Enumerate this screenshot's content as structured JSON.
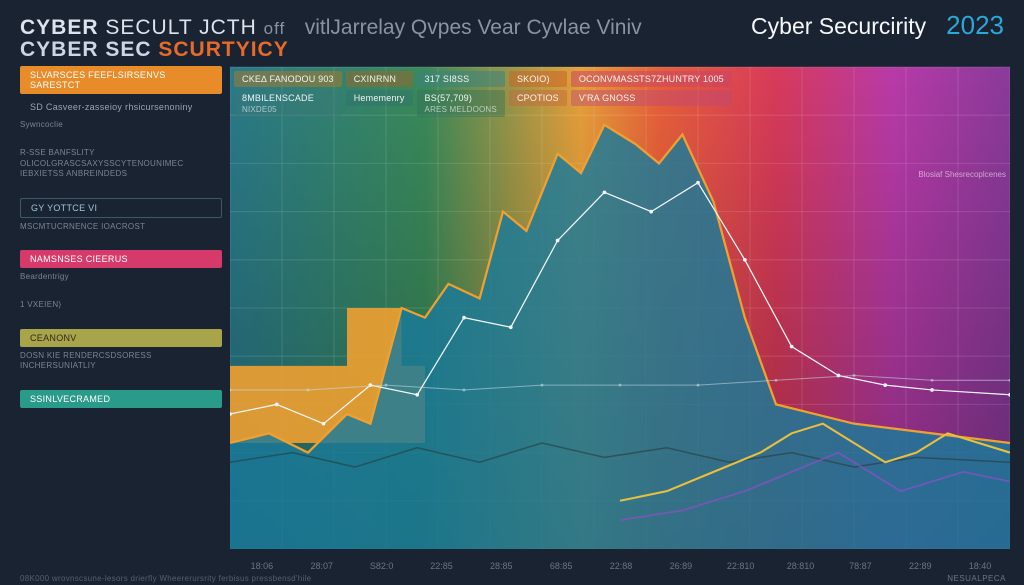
{
  "header": {
    "title_line1_a": "CYBER",
    "title_line1_b": "SECULT JCTH",
    "title_line1_c": "off",
    "title_line2_a": "CYBER SEC",
    "title_line2_b": "SCURTYICY",
    "subtitle": "vitlJarrelay Qvpes Vear Cyvlae Viniv",
    "brand": "Cyber Securcirity",
    "year": "2023"
  },
  "sidebar": {
    "groups": [
      {
        "chips": [
          {
            "label": "SLVARSCES  FEEFLSIRSENVS SARESTCT",
            "bg": "#e88c2a",
            "fg": "#ffffff"
          },
          {
            "label": "SD Casveer-zasseioy rhsicursenoniny",
            "bg": "transparent",
            "fg": "#9aa3b2"
          }
        ],
        "note": "Sywncoclie"
      },
      {
        "note": "R-SSE BANFSLITY OLICOLGRASCSAXYSSCYTENOUNIMEC\\nIEBXIETSS ANBREINDEDS"
      },
      {
        "chips": [
          {
            "label": "GY YOTTCE VI",
            "bg": "transparent",
            "fg": "#9ec5d6",
            "border": "#3a5a6a"
          }
        ],
        "note": "MSCMTUCRNENCE IOACROST"
      },
      {
        "chips": [
          {
            "label": "NAMSNSES CIEERUS",
            "bg": "#d63a6a",
            "fg": "#ffffff"
          }
        ],
        "note": "Beardentrigy"
      },
      {
        "note": "1 VXEIEN)"
      },
      {
        "chips": [
          {
            "label": "CEANONV",
            "bg": "#a8a44a",
            "fg": "#2a2a1a"
          }
        ],
        "note": "DOSN KIE RENDERCSDSORESS\\nINCHERSUNIATLIY"
      },
      {
        "chips": [
          {
            "label": "SSINLVECRAMED",
            "bg": "#2a9a8a",
            "fg": "#ffffff"
          }
        ]
      }
    ]
  },
  "chart": {
    "type": "area+line",
    "background_gradient": {
      "stops": [
        {
          "x": 0.0,
          "top": "#2a7a8a",
          "bottom": "#3a9a7a"
        },
        {
          "x": 0.25,
          "top": "#3a8a5a",
          "bottom": "#6a9a4a"
        },
        {
          "x": 0.45,
          "top": "#e8a03a",
          "bottom": "#d8883a"
        },
        {
          "x": 0.55,
          "top": "#e8603a",
          "bottom": "#c8aa4a"
        },
        {
          "x": 0.7,
          "top": "#d83a5a",
          "bottom": "#b84a9a"
        },
        {
          "x": 0.85,
          "top": "#b83aa8",
          "bottom": "#9a3ac8"
        },
        {
          "x": 1.0,
          "top": "#8a3a9a",
          "bottom": "#6a3a8a"
        }
      ]
    },
    "grid_color": "rgba(255,255,255,0.12)",
    "grid_rows": 10,
    "grid_cols": 15,
    "xticks": [
      "18:06",
      "28:07",
      "S82:0",
      "22:85",
      "28:85",
      "68:85",
      "22:88",
      "26:89",
      "22:810",
      "28:810",
      "78:87",
      "22:89",
      "18:40"
    ],
    "ylim": [
      0,
      100
    ],
    "top_chips_row1": [
      {
        "label": "CKE∆  FANODOU 903",
        "bg": "rgba(180,120,40,0.5)"
      },
      {
        "label": "CXINRNN",
        "bg": "rgba(160,100,40,0.5)"
      },
      {
        "label": "317 SI8SS",
        "bg": "rgba(60,130,130,0.55)"
      },
      {
        "label": "SKOIO)",
        "bg": "rgba(200,100,40,0.55)"
      },
      {
        "label": "OCONVMASSTS7ZHUNTRY 1005",
        "bg": "rgba(200,70,100,0.55)"
      }
    ],
    "top_chips_row2": [
      {
        "label": "8MBILENSCADE",
        "sub": "NIXDE05",
        "bg": "rgba(60,120,120,0.4)"
      },
      {
        "label": "Hememenry",
        "sub": "",
        "bg": "rgba(50,110,110,0.4)"
      },
      {
        "label": "BS(57,709)",
        "sub": "ARES MELDOONS",
        "bg": "rgba(50,110,90,0.4)"
      },
      {
        "label": "CPOTIOS",
        "sub": "",
        "bg": "rgba(200,100,60,0.45)"
      },
      {
        "label": "V'RA GNOSS",
        "sub": "",
        "bg": "rgba(190,70,120,0.45)"
      }
    ],
    "right_note": "Blosiaf Shesrecoplcenes",
    "area_series": {
      "name": "primary-area",
      "fill": "#1a7a9a",
      "fill_opacity": 0.82,
      "stroke": "#f0a030",
      "stroke_width": 2.2,
      "points": [
        [
          0,
          22
        ],
        [
          5,
          24
        ],
        [
          10,
          20
        ],
        [
          15,
          28
        ],
        [
          18,
          26
        ],
        [
          22,
          50
        ],
        [
          25,
          48
        ],
        [
          28,
          55
        ],
        [
          32,
          52
        ],
        [
          35,
          70
        ],
        [
          38,
          66
        ],
        [
          42,
          82
        ],
        [
          45,
          78
        ],
        [
          48,
          88
        ],
        [
          52,
          84
        ],
        [
          55,
          80
        ],
        [
          58,
          86
        ],
        [
          62,
          72
        ],
        [
          66,
          48
        ],
        [
          70,
          30
        ],
        [
          75,
          28
        ],
        [
          80,
          26
        ],
        [
          85,
          25
        ],
        [
          90,
          24
        ],
        [
          100,
          22
        ]
      ]
    },
    "orange_block": {
      "fill": "#f0a030",
      "opacity": 0.9,
      "points": [
        [
          0,
          38
        ],
        [
          15,
          38
        ],
        [
          15,
          50
        ],
        [
          22,
          50
        ],
        [
          22,
          38
        ],
        [
          25,
          38
        ],
        [
          25,
          22
        ],
        [
          0,
          22
        ]
      ]
    },
    "lines": [
      {
        "name": "line-white",
        "stroke": "#f5f7fa",
        "width": 1.2,
        "dots": true,
        "dot_r": 1.8,
        "points": [
          [
            0,
            28
          ],
          [
            6,
            30
          ],
          [
            12,
            26
          ],
          [
            18,
            34
          ],
          [
            24,
            32
          ],
          [
            30,
            48
          ],
          [
            36,
            46
          ],
          [
            42,
            64
          ],
          [
            48,
            74
          ],
          [
            54,
            70
          ],
          [
            60,
            76
          ],
          [
            66,
            60
          ],
          [
            72,
            42
          ],
          [
            78,
            36
          ],
          [
            84,
            34
          ],
          [
            90,
            33
          ],
          [
            100,
            32
          ]
        ]
      },
      {
        "name": "line-cyan-flat",
        "stroke": "rgba(200,220,235,0.55)",
        "width": 1.0,
        "dots": true,
        "dot_r": 1.4,
        "points": [
          [
            0,
            33
          ],
          [
            10,
            33
          ],
          [
            20,
            34
          ],
          [
            30,
            33
          ],
          [
            40,
            34
          ],
          [
            50,
            34
          ],
          [
            60,
            34
          ],
          [
            70,
            35
          ],
          [
            80,
            36
          ],
          [
            90,
            35
          ],
          [
            100,
            35
          ]
        ]
      },
      {
        "name": "line-dark-wave",
        "stroke": "rgba(40,60,60,0.6)",
        "width": 1.5,
        "dots": false,
        "points": [
          [
            0,
            18
          ],
          [
            8,
            20
          ],
          [
            16,
            17
          ],
          [
            24,
            21
          ],
          [
            32,
            18
          ],
          [
            40,
            22
          ],
          [
            48,
            19
          ],
          [
            56,
            21
          ],
          [
            64,
            18
          ],
          [
            72,
            20
          ],
          [
            80,
            17
          ],
          [
            88,
            19
          ],
          [
            100,
            18
          ]
        ]
      },
      {
        "name": "line-yellow-bottom",
        "stroke": "#e8c040",
        "width": 2.0,
        "dots": false,
        "points": [
          [
            50,
            10
          ],
          [
            56,
            12
          ],
          [
            62,
            16
          ],
          [
            68,
            20
          ],
          [
            72,
            24
          ],
          [
            76,
            26
          ],
          [
            80,
            22
          ],
          [
            84,
            18
          ],
          [
            88,
            20
          ],
          [
            92,
            24
          ],
          [
            96,
            22
          ],
          [
            100,
            20
          ]
        ]
      },
      {
        "name": "line-purple-bottom",
        "stroke": "rgba(140,80,200,0.7)",
        "width": 1.8,
        "dots": false,
        "points": [
          [
            50,
            6
          ],
          [
            58,
            8
          ],
          [
            66,
            12
          ],
          [
            72,
            16
          ],
          [
            78,
            20
          ],
          [
            82,
            16
          ],
          [
            86,
            12
          ],
          [
            90,
            14
          ],
          [
            94,
            16
          ],
          [
            100,
            14
          ]
        ]
      }
    ]
  },
  "footer": {
    "left": "08K000   wrovnscsune-lesors drierfly Wheererursrity ferbisus pressbensd'hile",
    "right": "NESUALPECA"
  }
}
